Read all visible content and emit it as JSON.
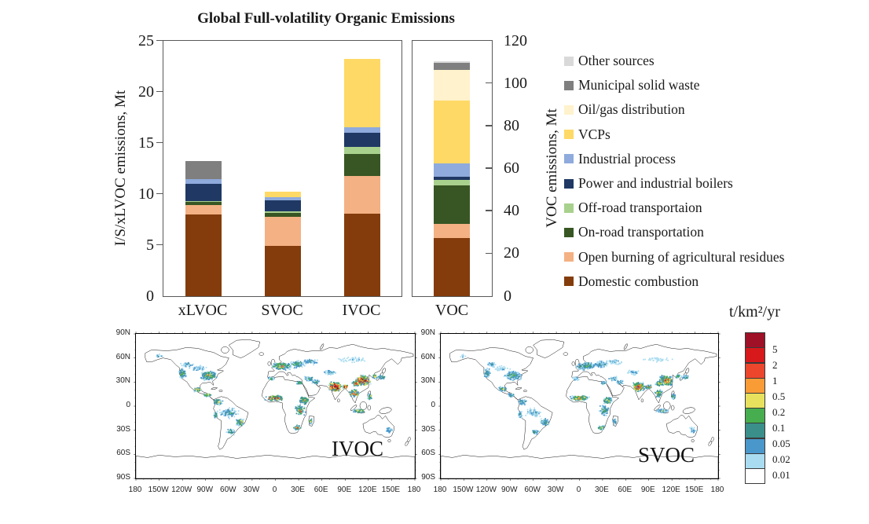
{
  "chart_data": {
    "type": "bar",
    "stacked": true,
    "title": "Global Full-volatility Organic Emissions",
    "left_axis": {
      "label": "I/S/xLVOC emissions, Mt",
      "ylim": [
        0,
        25
      ],
      "yticks": [
        0,
        5,
        10,
        15,
        20,
        25
      ],
      "categories": [
        "xLVOC",
        "SVOC",
        "IVOC"
      ]
    },
    "right_axis": {
      "label": "VOC emissions, Mt",
      "ylim": [
        0,
        120
      ],
      "yticks": [
        0,
        20,
        40,
        60,
        80,
        100,
        120
      ],
      "categories": [
        "VOC"
      ]
    },
    "categories": [
      "xLVOC",
      "SVOC",
      "IVOC",
      "VOC"
    ],
    "series_bottom_to_top": [
      {
        "name": "Domestic combustion",
        "color": "#843C0C",
        "values": [
          8.0,
          4.9,
          8.1,
          27.5
        ]
      },
      {
        "name": "Open burning of agricultural residues",
        "color": "#F4B183",
        "values": [
          0.95,
          2.85,
          3.7,
          6.5
        ]
      },
      {
        "name": "On-road transportation",
        "color": "#375623",
        "values": [
          0.25,
          0.4,
          2.1,
          18.0
        ]
      },
      {
        "name": "Off-road transportaion",
        "color": "#A9D18E",
        "values": [
          0.08,
          0.15,
          0.75,
          2.8
        ]
      },
      {
        "name": "Power and industrial boilers",
        "color": "#1F3864",
        "values": [
          1.7,
          1.05,
          1.35,
          1.5
        ]
      },
      {
        "name": "Industrial process",
        "color": "#8FAADC",
        "values": [
          0.5,
          0.35,
          0.55,
          6.2
        ]
      },
      {
        "name": "VCPs",
        "color": "#FFD966",
        "values": [
          0,
          0.5,
          6.7,
          29.5
        ]
      },
      {
        "name": "Oil/gas distribution",
        "color": "#FFF2CC",
        "values": [
          0,
          0,
          0,
          14.5
        ]
      },
      {
        "name": "Municipal solid waste",
        "color": "#7F7F7F",
        "values": [
          1.75,
          0,
          0,
          3.0
        ]
      },
      {
        "name": "Other sources",
        "color": "#D9D9D9",
        "values": [
          0,
          0,
          0,
          1.0
        ]
      }
    ]
  },
  "legend": {
    "items_top_to_bottom": [
      {
        "label": "Other sources",
        "color": "#D9D9D9"
      },
      {
        "label": "Municipal solid waste",
        "color": "#7F7F7F"
      },
      {
        "label": "Oil/gas distribution",
        "color": "#FFF2CC"
      },
      {
        "label": "VCPs",
        "color": "#FFD966"
      },
      {
        "label": "Industrial process",
        "color": "#8FAADC"
      },
      {
        "label": "Power and industrial boilers",
        "color": "#1F3864"
      },
      {
        "label": "Off-road transportaion",
        "color": "#A9D18E"
      },
      {
        "label": "On-road transportation",
        "color": "#375623"
      },
      {
        "label": "Open burning of agricultural residues",
        "color": "#F4B183"
      },
      {
        "label": "Domestic combustion",
        "color": "#843C0C"
      }
    ]
  },
  "maps": {
    "panels": [
      {
        "id": "ivoc",
        "label": "IVOC",
        "intensity_factor": 1.0
      },
      {
        "id": "svoc",
        "label": "SVOC",
        "intensity_factor": 0.78
      }
    ],
    "lat_labels": [
      "90N",
      "60N",
      "30N",
      "0",
      "30S",
      "60S",
      "90S"
    ],
    "lon_labels": [
      "180",
      "150W",
      "120W",
      "90W",
      "60W",
      "30W",
      "0",
      "30E",
      "60E",
      "90E",
      "120E",
      "150E",
      "180"
    ],
    "hotspots": [
      [
        -120,
        41,
        5,
        8,
        120,
        0.45
      ],
      [
        -86,
        38,
        11,
        7,
        400,
        0.5
      ],
      [
        -100,
        47,
        12,
        5,
        80,
        0.25
      ],
      [
        -114,
        52,
        8,
        5,
        60,
        0.3
      ],
      [
        -100,
        21,
        5,
        4,
        90,
        0.6
      ],
      [
        -88,
        14,
        5,
        3,
        50,
        0.55
      ],
      [
        -74,
        5,
        6,
        5,
        80,
        0.5
      ],
      [
        -60,
        -8,
        12,
        8,
        150,
        0.35
      ],
      [
        -45,
        -20,
        6,
        6,
        120,
        0.55
      ],
      [
        -58,
        -32,
        6,
        5,
        60,
        0.4
      ],
      [
        -77,
        -10,
        3,
        6,
        40,
        0.45
      ],
      [
        8,
        50,
        12,
        6,
        350,
        0.55
      ],
      [
        28,
        52,
        10,
        6,
        150,
        0.4
      ],
      [
        45,
        55,
        12,
        5,
        100,
        0.3
      ],
      [
        -5,
        34,
        5,
        3,
        50,
        0.4
      ],
      [
        31,
        29,
        4,
        3,
        50,
        0.5
      ],
      [
        0,
        10,
        12,
        4,
        280,
        0.8
      ],
      [
        37,
        7,
        6,
        6,
        150,
        0.65
      ],
      [
        32,
        -5,
        6,
        8,
        150,
        0.6
      ],
      [
        28,
        -27,
        5,
        4,
        80,
        0.55
      ],
      [
        46,
        -19,
        2.5,
        5,
        40,
        0.5
      ],
      [
        44,
        34,
        7,
        4,
        80,
        0.4
      ],
      [
        52,
        30,
        5,
        4,
        60,
        0.4
      ],
      [
        70,
        42,
        9,
        4,
        80,
        0.3
      ],
      [
        77,
        24,
        8,
        7,
        450,
        0.95
      ],
      [
        90,
        24,
        4,
        3,
        90,
        0.8
      ],
      [
        113,
        32,
        9,
        8,
        450,
        0.9
      ],
      [
        104,
        28,
        5,
        4,
        100,
        0.7
      ],
      [
        102,
        16,
        6,
        6,
        150,
        0.7
      ],
      [
        108,
        -6,
        8,
        3,
        120,
        0.55
      ],
      [
        122,
        12,
        3,
        5,
        60,
        0.5
      ],
      [
        128,
        37,
        3,
        3,
        50,
        0.55
      ],
      [
        137,
        36,
        5,
        3,
        70,
        0.5
      ],
      [
        147,
        -30,
        5,
        6,
        50,
        0.3
      ],
      [
        100,
        58,
        25,
        6,
        120,
        0.18
      ],
      [
        -150,
        62,
        6,
        4,
        25,
        0.25
      ]
    ],
    "intensity_palette_low_to_high": [
      "#FFFFFF",
      "#A9DCF0",
      "#4A97CB",
      "#3A8F8A",
      "#46AE4E",
      "#E7E15E",
      "#F99C36",
      "#EC462D",
      "#D7191C",
      "#9E1127"
    ]
  },
  "colorbar": {
    "title": "t/km²/yr",
    "labels_top_to_bottom": [
      "5",
      "2",
      "1",
      "0.5",
      "0.2",
      "0.1",
      "0.05",
      "0.02",
      "0.01"
    ],
    "colors_top_to_bottom": [
      "#9E1127",
      "#D7191C",
      "#EC462D",
      "#F99C36",
      "#E7E15E",
      "#46AE4E",
      "#3A8F8A",
      "#4A97CB",
      "#A9DCF0",
      "#FFFFFF"
    ]
  }
}
